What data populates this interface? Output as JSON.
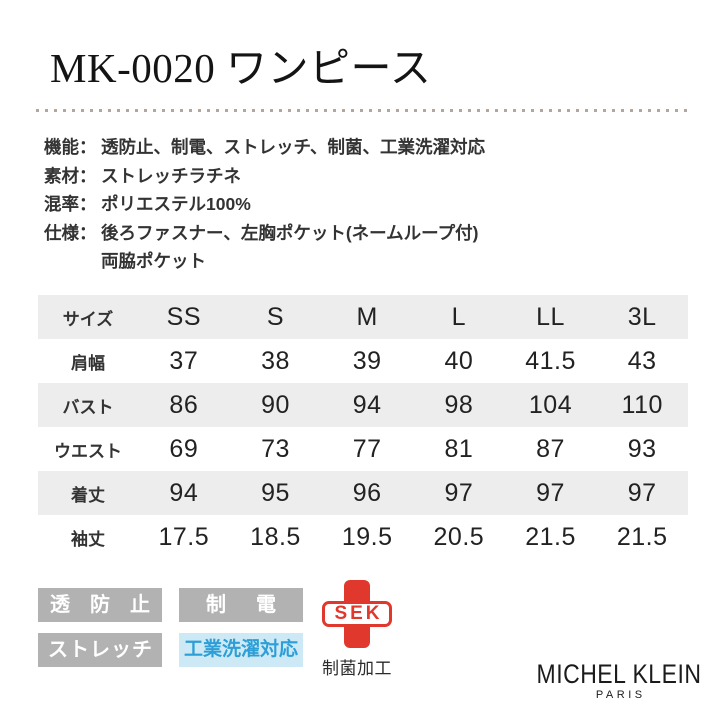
{
  "colors": {
    "sek_red": "#e1382d",
    "badge_gray": "#b2b2b2",
    "badge_blue_bg": "#cde9f6",
    "badge_blue_text": "#2d9ed6",
    "table_stripe": "#ededed",
    "dotted_line": "#b3a69f"
  },
  "product": {
    "title": "MK-0020 ワンピース",
    "specs": [
      {
        "label": "機能：",
        "value": "透防止、制電、ストレッチ、制菌、工業洗濯対応"
      },
      {
        "label": "素材：",
        "value": "ストレッチラチネ"
      },
      {
        "label": "混率：",
        "value": "ポリエステル100%"
      },
      {
        "label": "仕様：",
        "value": "後ろファスナー、左胸ポケット(ネームループ付)"
      },
      {
        "label": "",
        "value": "両脇ポケット"
      }
    ]
  },
  "size_table": {
    "header": [
      "サイズ",
      "SS",
      "S",
      "M",
      "L",
      "LL",
      "3L"
    ],
    "rows": [
      {
        "label": "肩幅",
        "values": [
          "37",
          "38",
          "39",
          "40",
          "41.5",
          "43"
        ]
      },
      {
        "label": "バスト",
        "values": [
          "86",
          "90",
          "94",
          "98",
          "104",
          "110"
        ]
      },
      {
        "label": "ウエスト",
        "values": [
          "69",
          "73",
          "77",
          "81",
          "87",
          "93"
        ]
      },
      {
        "label": "着丈",
        "values": [
          "94",
          "95",
          "96",
          "97",
          "97",
          "97"
        ]
      },
      {
        "label": "袖丈",
        "values": [
          "17.5",
          "18.5",
          "19.5",
          "20.5",
          "21.5",
          "21.5"
        ]
      }
    ]
  },
  "badges": {
    "toumeiboushi": "透防止",
    "seiden": "制電",
    "stretch": "ストレッチ",
    "industrial_wash": "工業洗濯対応"
  },
  "sek_mark": {
    "label": "SEK",
    "caption": "制菌加工"
  },
  "brand": {
    "name": "MICHEL KLEIN",
    "city": "PARIS"
  }
}
